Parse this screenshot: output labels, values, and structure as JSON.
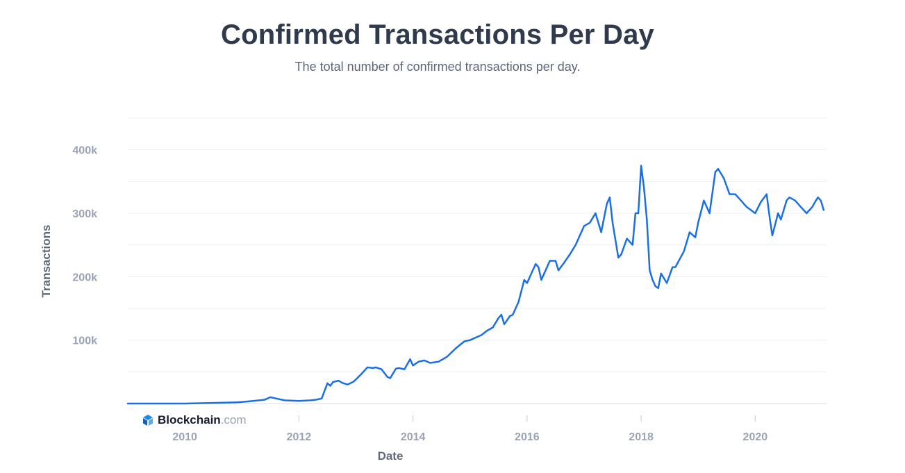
{
  "chart_data": {
    "type": "line",
    "title": "Confirmed Transactions Per Day",
    "subtitle": "The total number of confirmed transactions per day.",
    "xlabel": "Date",
    "ylabel": "Transactions",
    "xlim": [
      2009.0,
      2021.25
    ],
    "ylim": [
      0,
      450000
    ],
    "x_ticks": [
      2010,
      2012,
      2014,
      2016,
      2018,
      2020
    ],
    "x_tick_labels": [
      "2010",
      "2012",
      "2014",
      "2016",
      "2018",
      "2020"
    ],
    "y_ticks": [
      100000,
      200000,
      300000,
      400000
    ],
    "y_tick_labels": [
      "100k",
      "200k",
      "300k",
      "400k"
    ],
    "grid": true,
    "line_color": "#1a6fe6",
    "series": [
      {
        "x": [
          2009.0,
          2009.5,
          2010.0,
          2010.5,
          2010.9,
          2011.0,
          2011.2,
          2011.4,
          2011.5,
          2011.6,
          2011.75,
          2012.0,
          2012.2,
          2012.3,
          2012.4,
          2012.45,
          2012.5,
          2012.55,
          2012.6,
          2012.7,
          2012.75,
          2012.85,
          2012.95,
          2013.0,
          2013.1,
          2013.2,
          2013.3,
          2013.35,
          2013.45,
          2013.55,
          2013.6,
          2013.7,
          2013.75,
          2013.85,
          2013.95,
          2014.0,
          2014.1,
          2014.2,
          2014.3,
          2014.45,
          2014.6,
          2014.75,
          2014.9,
          2015.0,
          2015.1,
          2015.2,
          2015.3,
          2015.4,
          2015.5,
          2015.55,
          2015.6,
          2015.7,
          2015.75,
          2015.8,
          2015.85,
          2015.95,
          2016.0,
          2016.05,
          2016.15,
          2016.2,
          2016.25,
          2016.3,
          2016.4,
          2016.5,
          2016.55,
          2016.65,
          2016.75,
          2016.85,
          2016.95,
          2017.0,
          2017.1,
          2017.2,
          2017.3,
          2017.4,
          2017.45,
          2017.5,
          2017.6,
          2017.65,
          2017.75,
          2017.85,
          2017.9,
          2017.95,
          2018.0,
          2018.05,
          2018.1,
          2018.15,
          2018.2,
          2018.25,
          2018.3,
          2018.35,
          2018.45,
          2018.55,
          2018.6,
          2018.75,
          2018.85,
          2018.95,
          2019.0,
          2019.1,
          2019.2,
          2019.3,
          2019.35,
          2019.45,
          2019.55,
          2019.65,
          2019.75,
          2019.85,
          2020.0,
          2020.1,
          2020.2,
          2020.25,
          2020.3,
          2020.4,
          2020.45,
          2020.55,
          2020.6,
          2020.7,
          2020.8,
          2020.9,
          2021.0,
          2021.05,
          2021.1,
          2021.15,
          2021.2
        ],
        "values": [
          0,
          0,
          0,
          1000,
          2000,
          2500,
          4000,
          6000,
          10000,
          8000,
          5000,
          4000,
          5000,
          6000,
          8000,
          20000,
          32000,
          28000,
          34000,
          36000,
          33000,
          30000,
          34000,
          38000,
          47000,
          57000,
          56000,
          57000,
          54000,
          42000,
          40000,
          55000,
          56000,
          54000,
          70000,
          60000,
          66000,
          68000,
          64000,
          66000,
          74000,
          87000,
          98000,
          100000,
          104000,
          108000,
          115000,
          120000,
          135000,
          140000,
          125000,
          138000,
          140000,
          150000,
          160000,
          195000,
          190000,
          200000,
          220000,
          215000,
          195000,
          205000,
          225000,
          225000,
          210000,
          222000,
          235000,
          250000,
          270000,
          280000,
          285000,
          300000,
          270000,
          315000,
          325000,
          285000,
          230000,
          235000,
          260000,
          250000,
          300000,
          300000,
          375000,
          340000,
          290000,
          210000,
          195000,
          185000,
          182000,
          205000,
          190000,
          215000,
          215000,
          240000,
          270000,
          262000,
          285000,
          320000,
          300000,
          365000,
          370000,
          355000,
          330000,
          330000,
          320000,
          310000,
          300000,
          318000,
          330000,
          295000,
          265000,
          300000,
          290000,
          320000,
          325000,
          320000,
          310000,
          300000,
          310000,
          318000,
          325000,
          320000,
          305000
        ]
      }
    ]
  },
  "watermark": {
    "brand": "Blockchain",
    "domain": ".com"
  }
}
